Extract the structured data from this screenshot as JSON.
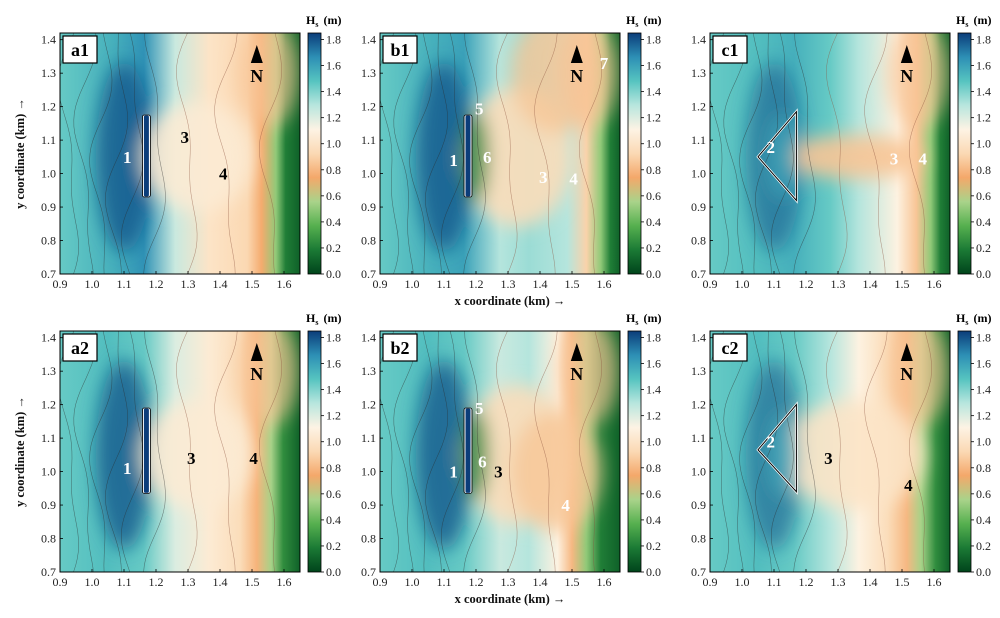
{
  "chart_data": {
    "type": "heatmap",
    "colorbar": {
      "title_main": "H",
      "title_sub": "s",
      "title_unit": "(m)",
      "ticks": [
        "0.0",
        "0.2",
        "0.4",
        "0.6",
        "0.8",
        "1.0",
        "1.2",
        "1.4",
        "1.6",
        "1.8"
      ],
      "range": [
        0,
        1.85
      ],
      "colors": [
        "#00441b",
        "#1b7a35",
        "#56b04f",
        "#a9d38a",
        "#f4a86a",
        "#fbd9b4",
        "#fdf3e4",
        "#b8e6de",
        "#56c4c0",
        "#2d8fb5",
        "#0b3d7a"
      ]
    },
    "axes": {
      "xlim": [
        0.9,
        1.65
      ],
      "ylim": [
        0.7,
        1.42
      ],
      "xticks": [
        "0.9",
        "1.0",
        "1.1",
        "1.2",
        "1.3",
        "1.4",
        "1.5",
        "1.6"
      ],
      "yticks": [
        "0.7",
        "0.8",
        "0.9",
        "1.0",
        "1.1",
        "1.2",
        "1.3",
        "1.4"
      ],
      "xlabel": "x coordinate (km)",
      "ylabel": "y coordinate (km)",
      "arrow": "→"
    },
    "north_label": "N",
    "panels": [
      {
        "id": "a1",
        "label": "a1",
        "structure": "wall",
        "wall": {
          "x": 1.17,
          "y0": 0.93,
          "y1": 1.175
        },
        "show_xlabel": false,
        "show_ylabel": true,
        "annotations": [
          {
            "text": "1",
            "x": 1.11,
            "y": 1.05,
            "color": "#ffffff"
          },
          {
            "text": "3",
            "x": 1.29,
            "y": 1.11,
            "color": "#000000"
          },
          {
            "text": "4",
            "x": 1.41,
            "y": 1.0,
            "color": "#000000"
          }
        ]
      },
      {
        "id": "b1",
        "label": "b1",
        "structure": "wall",
        "wall": {
          "x": 1.175,
          "y0": 0.93,
          "y1": 1.175
        },
        "show_xlabel": true,
        "show_ylabel": false,
        "annotations": [
          {
            "text": "5",
            "x": 1.21,
            "y": 1.195,
            "color": "#ffffff"
          },
          {
            "text": "1",
            "x": 1.13,
            "y": 1.04,
            "color": "#ffffff"
          },
          {
            "text": "6",
            "x": 1.235,
            "y": 1.05,
            "color": "#ffffff"
          },
          {
            "text": "3",
            "x": 1.41,
            "y": 0.99,
            "color": "#ffffff"
          },
          {
            "text": "4",
            "x": 1.505,
            "y": 0.985,
            "color": "#ffffff"
          },
          {
            "text": "7",
            "x": 1.6,
            "y": 1.33,
            "color": "#ffffff"
          }
        ]
      },
      {
        "id": "c1",
        "label": "c1",
        "structure": "triangle",
        "tri": {
          "apex": [
            1.05,
            1.05
          ],
          "top": [
            1.17,
            1.185
          ],
          "bottom": [
            1.17,
            0.92
          ]
        },
        "show_xlabel": false,
        "show_ylabel": false,
        "annotations": [
          {
            "text": "2",
            "x": 1.09,
            "y": 1.08,
            "color": "#ffffff"
          },
          {
            "text": "3",
            "x": 1.475,
            "y": 1.045,
            "color": "#ffffff"
          },
          {
            "text": "4",
            "x": 1.565,
            "y": 1.045,
            "color": "#ffffff"
          }
        ]
      },
      {
        "id": "a2",
        "label": "a2",
        "structure": "wall",
        "wall": {
          "x": 1.17,
          "y0": 0.935,
          "y1": 1.19
        },
        "show_xlabel": false,
        "show_ylabel": true,
        "annotations": [
          {
            "text": "1",
            "x": 1.11,
            "y": 1.01,
            "color": "#ffffff"
          },
          {
            "text": "3",
            "x": 1.31,
            "y": 1.04,
            "color": "#000000"
          },
          {
            "text": "4",
            "x": 1.505,
            "y": 1.04,
            "color": "#000000"
          }
        ]
      },
      {
        "id": "b2",
        "label": "b2",
        "structure": "wall",
        "wall": {
          "x": 1.175,
          "y0": 0.935,
          "y1": 1.19
        },
        "show_xlabel": true,
        "show_ylabel": false,
        "annotations": [
          {
            "text": "5",
            "x": 1.21,
            "y": 1.19,
            "color": "#ffffff"
          },
          {
            "text": "1",
            "x": 1.13,
            "y": 1.0,
            "color": "#ffffff"
          },
          {
            "text": "6",
            "x": 1.22,
            "y": 1.03,
            "color": "#ffffff"
          },
          {
            "text": "3",
            "x": 1.27,
            "y": 1.0,
            "color": "#000000"
          },
          {
            "text": "4",
            "x": 1.48,
            "y": 0.9,
            "color": "#ffffff"
          }
        ]
      },
      {
        "id": "c2",
        "label": "c2",
        "structure": "triangle",
        "tri": {
          "apex": [
            1.05,
            1.065
          ],
          "top": [
            1.17,
            1.2
          ],
          "bottom": [
            1.17,
            0.94
          ]
        },
        "show_xlabel": false,
        "show_ylabel": false,
        "annotations": [
          {
            "text": "2",
            "x": 1.09,
            "y": 1.09,
            "color": "#ffffff"
          },
          {
            "text": "3",
            "x": 1.27,
            "y": 1.04,
            "color": "#000000"
          },
          {
            "text": "4",
            "x": 1.52,
            "y": 0.96,
            "color": "#000000"
          }
        ]
      }
    ]
  }
}
